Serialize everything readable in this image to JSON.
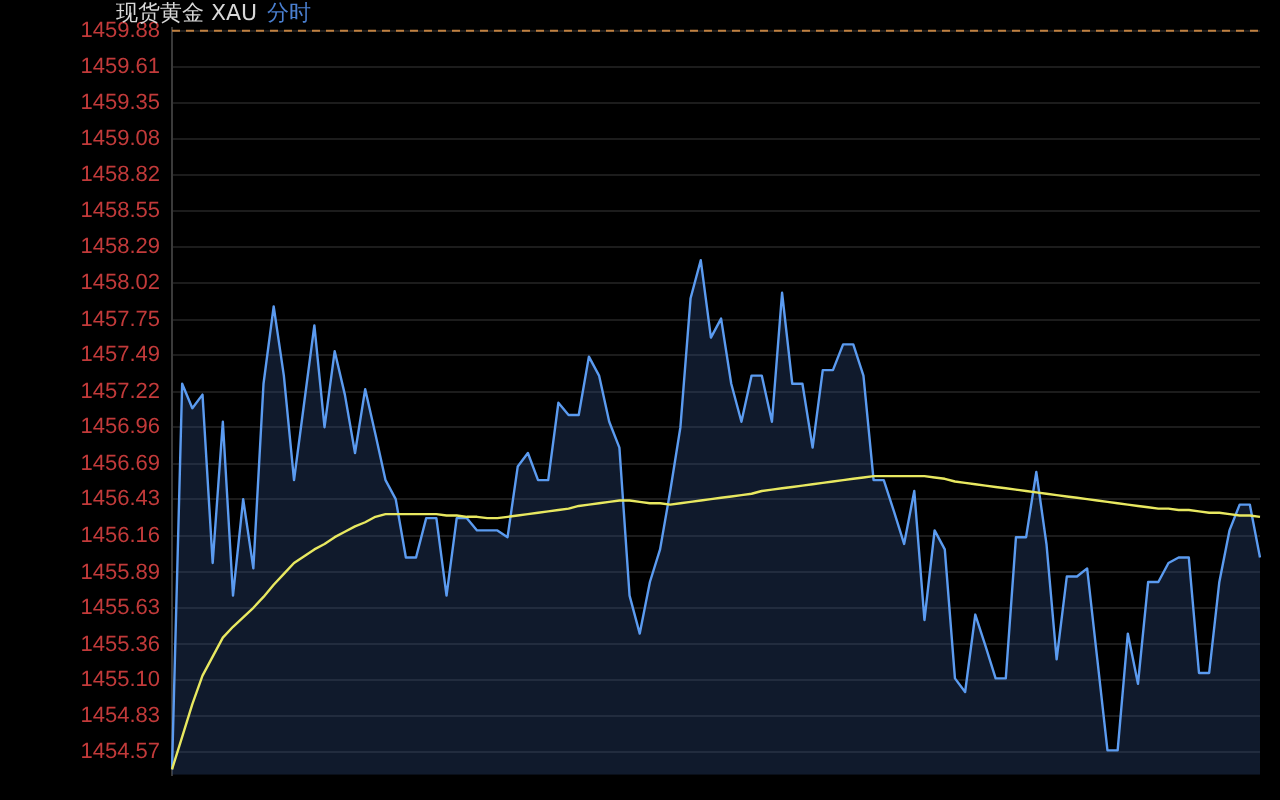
{
  "chart_data": {
    "type": "line",
    "title": "现货黄金 XAU",
    "subtitle": "分时",
    "categories": [
      null,
      null,
      null,
      null,
      null,
      null,
      null,
      null,
      null,
      null,
      null,
      null,
      null,
      null,
      null,
      null,
      null,
      null,
      null,
      null,
      null,
      null,
      null,
      null,
      null,
      null,
      null,
      null,
      null,
      null,
      null,
      null,
      null,
      null,
      null,
      null,
      null,
      null,
      null,
      null,
      null,
      null,
      null,
      null,
      null,
      null,
      null,
      null,
      null,
      null,
      null,
      null,
      null,
      null,
      null,
      null,
      null,
      null,
      null,
      null,
      null,
      null,
      null,
      null,
      null,
      null,
      null,
      null,
      null,
      null,
      null,
      null,
      null,
      null,
      null,
      null,
      null,
      null,
      null,
      null,
      null,
      null,
      null,
      null,
      null,
      null,
      null,
      null,
      null,
      null,
      null,
      null,
      null,
      null,
      null,
      null,
      null,
      null,
      null,
      null,
      null,
      null,
      null,
      null,
      null,
      null,
      null,
      null
    ],
    "ylim": [
      1454.4,
      1459.9
    ],
    "yticks": [
      1459.88,
      1459.61,
      1459.35,
      1459.08,
      1458.82,
      1458.55,
      1458.29,
      1458.02,
      1457.75,
      1457.49,
      1457.22,
      1456.96,
      1456.69,
      1456.43,
      1456.16,
      1455.89,
      1455.63,
      1455.36,
      {
        "value": 1455.1,
        "label": "1455.10"
      },
      1454.83,
      1454.57
    ],
    "tick_labels": "y",
    "grid": "y",
    "marker": "none",
    "ref_lines": [
      {
        "axis": "y",
        "value": 1459.88,
        "color": "#c08040",
        "line_style": "dashed"
      }
    ],
    "series": [
      {
        "type": "area",
        "color": "#5b9bf0",
        "values": [
          1454.44,
          1457.28,
          1457.1,
          1457.2,
          1455.96,
          1457.0,
          1455.72,
          1456.43,
          1455.92,
          1457.28,
          1457.85,
          1457.34,
          1456.57,
          1457.14,
          1457.71,
          1456.96,
          1457.52,
          1457.2,
          1456.77,
          1457.24,
          1456.91,
          1456.57,
          1456.43,
          1456.0,
          1456.0,
          1456.29,
          1456.29,
          1455.72,
          1456.29,
          1456.29,
          1456.2,
          1456.2,
          1456.2,
          1456.15,
          1456.67,
          1456.77,
          1456.57,
          1456.57,
          1457.14,
          1457.05,
          1457.05,
          1457.48,
          1457.34,
          1457.0,
          1456.81,
          1455.72,
          1455.44,
          1455.82,
          1456.06,
          1456.49,
          1456.96,
          1457.91,
          1458.19,
          1457.62,
          1457.76,
          1457.28,
          1457.0,
          1457.34,
          1457.34,
          1457.0,
          1457.95,
          1457.28,
          1457.28,
          1456.81,
          1457.38,
          1457.38,
          1457.57,
          1457.57,
          1457.34,
          1456.57,
          1456.57,
          1456.34,
          1456.1,
          1456.49,
          1455.54,
          1456.2,
          1456.06,
          1455.11,
          1455.01,
          1455.58,
          1455.35,
          1455.11,
          1455.11,
          1456.15,
          1456.15,
          1456.63,
          1456.1,
          1455.25,
          1455.86,
          1455.86,
          1455.92,
          1455.25,
          1454.58,
          1454.58,
          1455.44,
          1455.07,
          1455.82,
          1455.82,
          1455.96,
          1456.0,
          1456.0,
          1455.15,
          1455.15,
          1455.82,
          1456.2,
          1456.39,
          1456.39,
          1456.0
        ]
      },
      {
        "type": "line",
        "color": "#e8e860",
        "values": [
          1454.44,
          1454.68,
          1454.92,
          1455.13,
          1455.27,
          1455.41,
          1455.49,
          1455.56,
          1455.63,
          1455.71,
          1455.8,
          1455.88,
          1455.96,
          1456.01,
          1456.06,
          1456.1,
          1456.15,
          1456.19,
          1456.23,
          1456.26,
          1456.3,
          1456.32,
          1456.32,
          1456.32,
          1456.32,
          1456.32,
          1456.32,
          1456.31,
          1456.31,
          1456.3,
          1456.3,
          1456.29,
          1456.29,
          1456.3,
          1456.31,
          1456.32,
          1456.33,
          1456.34,
          1456.35,
          1456.36,
          1456.38,
          1456.39,
          1456.4,
          1456.41,
          1456.42,
          1456.42,
          1456.41,
          1456.4,
          1456.4,
          1456.39,
          1456.4,
          1456.41,
          1456.42,
          1456.43,
          1456.44,
          1456.45,
          1456.46,
          1456.47,
          1456.49,
          1456.5,
          1456.51,
          1456.52,
          1456.53,
          1456.54,
          1456.55,
          1456.56,
          1456.57,
          1456.58,
          1456.59,
          1456.6,
          1456.6,
          1456.6,
          1456.6,
          1456.6,
          1456.6,
          1456.59,
          1456.58,
          1456.56,
          1456.55,
          1456.54,
          1456.53,
          1456.52,
          1456.51,
          1456.5,
          1456.49,
          1456.48,
          1456.47,
          1456.46,
          1456.45,
          1456.44,
          1456.43,
          1456.42,
          1456.41,
          1456.4,
          1456.39,
          1456.38,
          1456.37,
          1456.36,
          1456.36,
          1456.35,
          1456.35,
          1456.34,
          1456.33,
          1456.33,
          1456.32,
          1456.31,
          1456.31,
          1456.3
        ]
      }
    ]
  }
}
